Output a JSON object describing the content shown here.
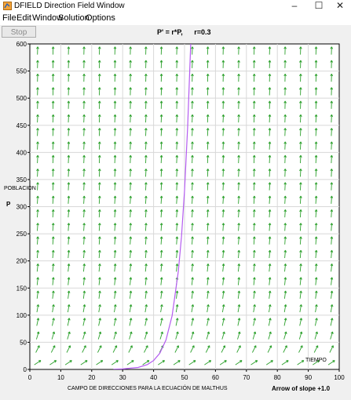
{
  "window": {
    "title": "DFIELD Direction Field Window"
  },
  "window_controls": {
    "minimize": "–",
    "maximize": "☐",
    "close": "✕"
  },
  "menu": [
    "File",
    "Edit",
    "Window",
    "Solution",
    "Options"
  ],
  "toolbar": {
    "stop_label": "Stop"
  },
  "equation": {
    "text": "P' = r*P,",
    "param": "r=0.3"
  },
  "footer": {
    "caption": "CAMPO DE DIRECCIONES PARA LA ECUACIÓN DE MALTHUS",
    "arrow_slope": "Arrow of slope +1.0"
  },
  "chart_data": {
    "type": "line",
    "title": "",
    "xlabel": "TIEMPO",
    "ylabel": "P",
    "ylabel_annotation": "POBLACION",
    "xlim": [
      0,
      100
    ],
    "ylim": [
      0,
      600
    ],
    "x_ticks": [
      0,
      10,
      20,
      30,
      40,
      50,
      60,
      70,
      80,
      90,
      100
    ],
    "y_ticks": [
      0,
      50,
      100,
      150,
      200,
      250,
      300,
      350,
      400,
      450,
      500,
      550,
      600
    ],
    "grid": true,
    "direction_field": {
      "equation": "P' = r*P",
      "r": 0.3,
      "arrow_color": "#2ca02c"
    },
    "series": [
      {
        "x": [
          27.0,
          30.0,
          35.0,
          38.0,
          40.0,
          42.0,
          44.0,
          46.0,
          48.0,
          49.0,
          50.0,
          51.0,
          52.0,
          52.3
        ],
        "y": [
          0.3,
          0.8,
          3.6,
          8.9,
          16.3,
          29.8,
          54.3,
          99.1,
          180.9,
          244.2,
          329.6,
          444.9,
          600.6,
          656.0
        ],
        "color": "#b45cf0"
      }
    ]
  }
}
